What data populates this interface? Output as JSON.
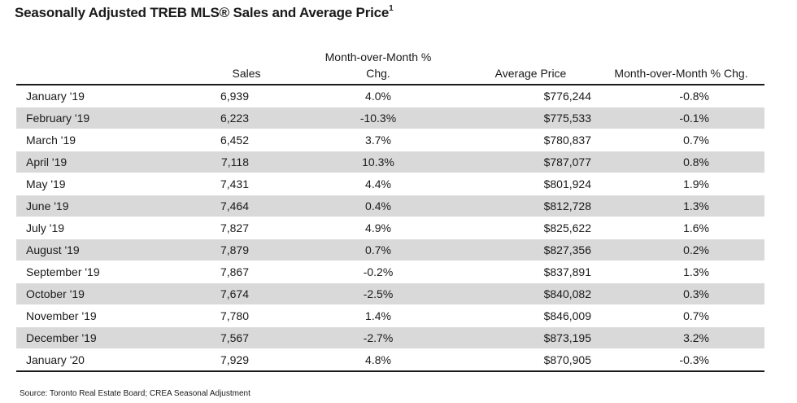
{
  "title": "Seasonally Adjusted TREB MLS® Sales and Average Price",
  "title_footnote": "1",
  "source": "Source: Toronto Real Estate Board; CREA Seasonal Adjustment",
  "colors": {
    "stripe": "#d9d9d9",
    "rule": "#1a1a1a"
  },
  "chart_data": {
    "type": "table",
    "columns": [
      "",
      "Sales",
      "Month-over-Month % Chg.",
      "Average Price",
      "Month-over-Month % Chg."
    ],
    "header_lines": {
      "sales": "Sales",
      "mom_sales_line1": "Month-over-Month %",
      "mom_sales_line2": "Chg.",
      "price": "Average Price",
      "mom_price": "Month-over-Month % Chg."
    },
    "rows": [
      {
        "month": "January '19",
        "sales": "6,939",
        "sales_mom": "4.0%",
        "avg_price": "$776,244",
        "price_mom": "-0.8%"
      },
      {
        "month": "February '19",
        "sales": "6,223",
        "sales_mom": "-10.3%",
        "avg_price": "$775,533",
        "price_mom": "-0.1%"
      },
      {
        "month": "March '19",
        "sales": "6,452",
        "sales_mom": "3.7%",
        "avg_price": "$780,837",
        "price_mom": "0.7%"
      },
      {
        "month": "April '19",
        "sales": "7,118",
        "sales_mom": "10.3%",
        "avg_price": "$787,077",
        "price_mom": "0.8%"
      },
      {
        "month": "May '19",
        "sales": "7,431",
        "sales_mom": "4.4%",
        "avg_price": "$801,924",
        "price_mom": "1.9%"
      },
      {
        "month": "June '19",
        "sales": "7,464",
        "sales_mom": "0.4%",
        "avg_price": "$812,728",
        "price_mom": "1.3%"
      },
      {
        "month": "July '19",
        "sales": "7,827",
        "sales_mom": "4.9%",
        "avg_price": "$825,622",
        "price_mom": "1.6%"
      },
      {
        "month": "August '19",
        "sales": "7,879",
        "sales_mom": "0.7%",
        "avg_price": "$827,356",
        "price_mom": "0.2%"
      },
      {
        "month": "September '19",
        "sales": "7,867",
        "sales_mom": "-0.2%",
        "avg_price": "$837,891",
        "price_mom": "1.3%"
      },
      {
        "month": "October '19",
        "sales": "7,674",
        "sales_mom": "-2.5%",
        "avg_price": "$840,082",
        "price_mom": "0.3%"
      },
      {
        "month": "November '19",
        "sales": "7,780",
        "sales_mom": "1.4%",
        "avg_price": "$846,009",
        "price_mom": "0.7%"
      },
      {
        "month": "December '19",
        "sales": "7,567",
        "sales_mom": "-2.7%",
        "avg_price": "$873,195",
        "price_mom": "3.2%"
      },
      {
        "month": "January '20",
        "sales": "7,929",
        "sales_mom": "4.8%",
        "avg_price": "$870,905",
        "price_mom": "-0.3%"
      }
    ]
  }
}
